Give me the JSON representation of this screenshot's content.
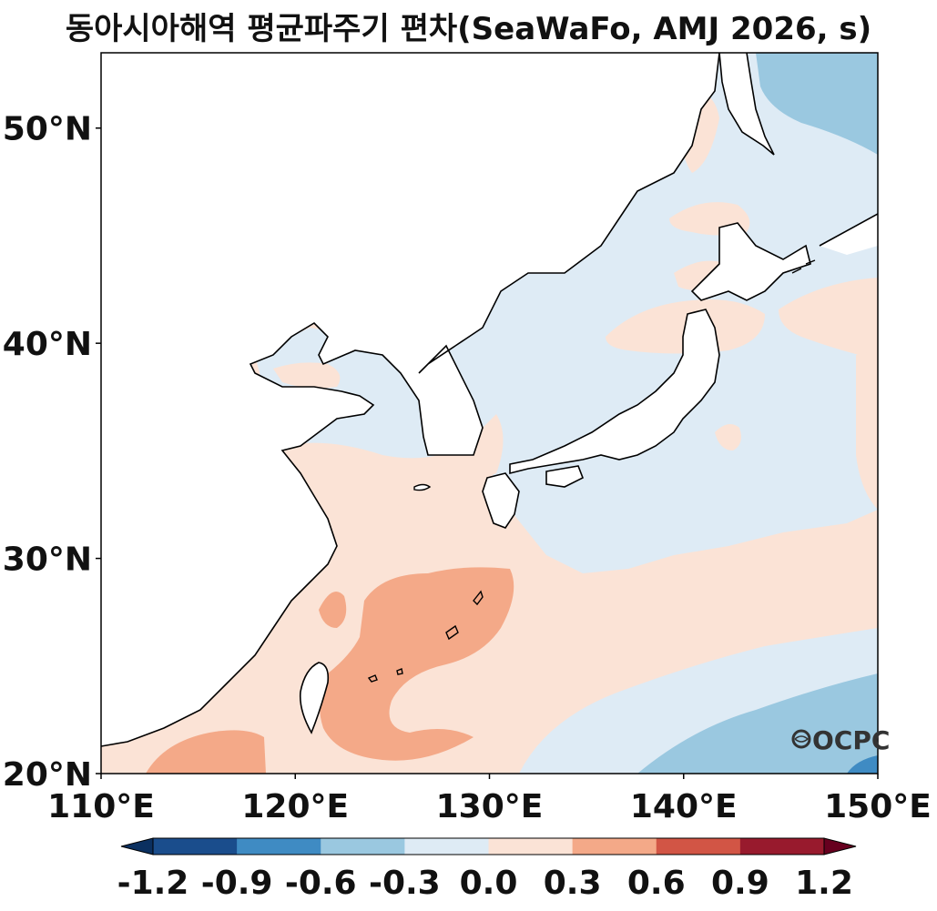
{
  "title": "동아시아해역 평균파주기 편차(SeaWaFo, AMJ 2026, s)",
  "watermark": "OCPC",
  "map": {
    "lon_range": [
      110,
      150
    ],
    "lat_range": [
      20,
      53.5
    ],
    "lat_ticks": [
      {
        "value": 50,
        "label": "50°N"
      },
      {
        "value": 40,
        "label": "40°N"
      },
      {
        "value": 30,
        "label": "30°N"
      },
      {
        "value": 20,
        "label": "20°N"
      }
    ],
    "lon_ticks": [
      {
        "value": 110,
        "label": "110°E"
      },
      {
        "value": 120,
        "label": "120°E"
      },
      {
        "value": 130,
        "label": "130°E"
      },
      {
        "value": 140,
        "label": "140°E"
      },
      {
        "value": 150,
        "label": "150°E"
      }
    ]
  },
  "colorbar": {
    "levels": [
      -1.2,
      -0.9,
      -0.6,
      -0.3,
      0.0,
      0.3,
      0.6,
      0.9,
      1.2
    ],
    "labels": [
      "-1.2",
      "-0.9",
      "-0.6",
      "-0.3",
      "0.0",
      "0.3",
      "0.6",
      "0.9",
      "1.2"
    ],
    "colors": [
      "#1a4d8c",
      "#3f8bc3",
      "#9ac8e0",
      "#deebf5",
      "#fbe3d6",
      "#f4a988",
      "#d25545",
      "#981a2d"
    ],
    "under_color": "#0b3060",
    "over_color": "#67001f"
  },
  "colors": {
    "neg_03": "#deebf5",
    "neg_06": "#9ac8e0",
    "neg_09": "#3f8bc3",
    "pos_03": "#fbe3d6",
    "pos_06": "#f4a988",
    "land": "#ffffff",
    "coast": "#000000"
  }
}
